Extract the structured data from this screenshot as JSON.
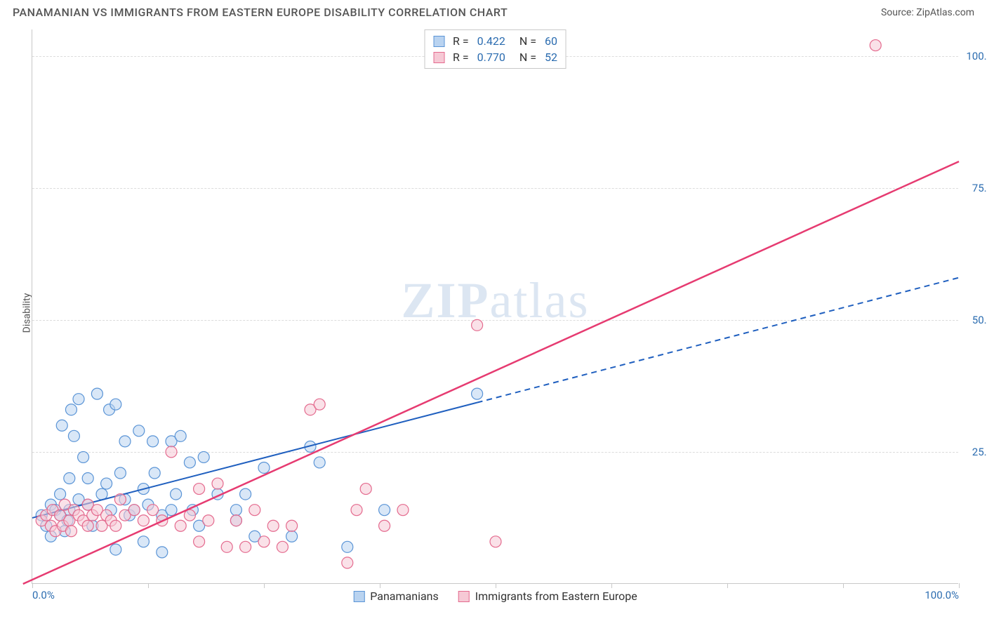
{
  "header": {
    "title": "PANAMANIAN VS IMMIGRANTS FROM EASTERN EUROPE DISABILITY CORRELATION CHART",
    "source_prefix": "Source: ",
    "source": "ZipAtlas.com"
  },
  "y_axis_label": "Disability",
  "watermark": {
    "zip": "ZIP",
    "atlas": "atlas"
  },
  "chart": {
    "type": "scatter",
    "xlim": [
      0,
      100
    ],
    "ylim": [
      0,
      105
    ],
    "grid_y": [
      25,
      50,
      75,
      100
    ],
    "grid_color": "#dcdcdc",
    "axis_color": "#c8c8c8",
    "background_color": "#ffffff",
    "x_ticks": [
      0,
      12.5,
      25,
      37.5,
      50,
      62.5,
      75,
      87.5,
      100
    ],
    "x_tick_labels": {
      "0": "0.0%",
      "100": "100.0%"
    },
    "y_tick_labels": {
      "25": "25.0%",
      "50": "50.0%",
      "75": "75.0%",
      "100": "100.0%"
    },
    "tick_label_color": "#2b6cb0",
    "marker_radius": 8,
    "marker_opacity": 0.55,
    "series": [
      {
        "name": "Panamanians",
        "fill": "#b9d3f0",
        "stroke": "#5a94d6",
        "trend": {
          "color": "#1f5fbf",
          "width": 2,
          "solid_until_x": 48,
          "x1": 0,
          "y1": 12.5,
          "x2": 100,
          "y2": 58
        },
        "points": [
          [
            1,
            13
          ],
          [
            1.5,
            11
          ],
          [
            2,
            15
          ],
          [
            2,
            9
          ],
          [
            2.5,
            14
          ],
          [
            3,
            13
          ],
          [
            3,
            17
          ],
          [
            3.2,
            30
          ],
          [
            3.5,
            10
          ],
          [
            3.8,
            12
          ],
          [
            4,
            14
          ],
          [
            4,
            20
          ],
          [
            4.2,
            33
          ],
          [
            4.5,
            28
          ],
          [
            5,
            16
          ],
          [
            5,
            35
          ],
          [
            5.5,
            24
          ],
          [
            6,
            20
          ],
          [
            6,
            15
          ],
          [
            6.5,
            11
          ],
          [
            7,
            36
          ],
          [
            7.5,
            17
          ],
          [
            8,
            19
          ],
          [
            8.3,
            33
          ],
          [
            8.5,
            14
          ],
          [
            9,
            34
          ],
          [
            9,
            6.5
          ],
          [
            9.5,
            21
          ],
          [
            10,
            16
          ],
          [
            10,
            27
          ],
          [
            10.5,
            13
          ],
          [
            11,
            14
          ],
          [
            11.5,
            29
          ],
          [
            12,
            8
          ],
          [
            12,
            18
          ],
          [
            12.5,
            15
          ],
          [
            13,
            27
          ],
          [
            13.2,
            21
          ],
          [
            14,
            13
          ],
          [
            14,
            6
          ],
          [
            15,
            14
          ],
          [
            15,
            27
          ],
          [
            15.5,
            17
          ],
          [
            16,
            28
          ],
          [
            17,
            23
          ],
          [
            17.3,
            14
          ],
          [
            18,
            11
          ],
          [
            18.5,
            24
          ],
          [
            20,
            17
          ],
          [
            22,
            12
          ],
          [
            22,
            14
          ],
          [
            23,
            17
          ],
          [
            24,
            9
          ],
          [
            25,
            22
          ],
          [
            28,
            9
          ],
          [
            30,
            26
          ],
          [
            31,
            23
          ],
          [
            34,
            7
          ],
          [
            38,
            14
          ],
          [
            48,
            36
          ]
        ]
      },
      {
        "name": "Immigrants from Eastern Europe",
        "fill": "#f6c9d5",
        "stroke": "#e46a8e",
        "trend": {
          "color": "#e63b71",
          "width": 2.5,
          "solid_until_x": 100,
          "x1": -1,
          "y1": 0,
          "x2": 100,
          "y2": 80
        },
        "points": [
          [
            1,
            12
          ],
          [
            1.5,
            13
          ],
          [
            2,
            11
          ],
          [
            2.2,
            14
          ],
          [
            2.5,
            10
          ],
          [
            3,
            13
          ],
          [
            3.3,
            11
          ],
          [
            3.5,
            15
          ],
          [
            4,
            12
          ],
          [
            4.2,
            10
          ],
          [
            4.5,
            14
          ],
          [
            5,
            13
          ],
          [
            5.5,
            12
          ],
          [
            6,
            11
          ],
          [
            6,
            15
          ],
          [
            6.5,
            13
          ],
          [
            7,
            14
          ],
          [
            7.5,
            11
          ],
          [
            8,
            13
          ],
          [
            8.5,
            12
          ],
          [
            9,
            11
          ],
          [
            9.5,
            16
          ],
          [
            10,
            13
          ],
          [
            11,
            14
          ],
          [
            12,
            12
          ],
          [
            13,
            14
          ],
          [
            14,
            12
          ],
          [
            15,
            25
          ],
          [
            16,
            11
          ],
          [
            17,
            13
          ],
          [
            18,
            18
          ],
          [
            18,
            8
          ],
          [
            19,
            12
          ],
          [
            20,
            19
          ],
          [
            21,
            7
          ],
          [
            22,
            12
          ],
          [
            23,
            7
          ],
          [
            24,
            14
          ],
          [
            25,
            8
          ],
          [
            26,
            11
          ],
          [
            27,
            7
          ],
          [
            28,
            11
          ],
          [
            30,
            33
          ],
          [
            31,
            34
          ],
          [
            34,
            4
          ],
          [
            35,
            14
          ],
          [
            36,
            18
          ],
          [
            38,
            11
          ],
          [
            40,
            14
          ],
          [
            48,
            49
          ],
          [
            50,
            8
          ],
          [
            91,
            102
          ]
        ]
      }
    ]
  },
  "legend_top": {
    "rows": [
      {
        "swatch_fill": "#b9d3f0",
        "swatch_stroke": "#5a94d6",
        "r_label": "R =",
        "r_value": "0.422",
        "n_label": "N =",
        "n_value": "60"
      },
      {
        "swatch_fill": "#f6c9d5",
        "swatch_stroke": "#e46a8e",
        "r_label": "R =",
        "r_value": "0.770",
        "n_label": "N =",
        "n_value": "52"
      }
    ],
    "value_color": "#2b6cb0"
  },
  "legend_bottom": [
    {
      "swatch_fill": "#b9d3f0",
      "swatch_stroke": "#5a94d6",
      "label": "Panamanians"
    },
    {
      "swatch_fill": "#f6c9d5",
      "swatch_stroke": "#e46a8e",
      "label": "Immigrants from Eastern Europe"
    }
  ]
}
